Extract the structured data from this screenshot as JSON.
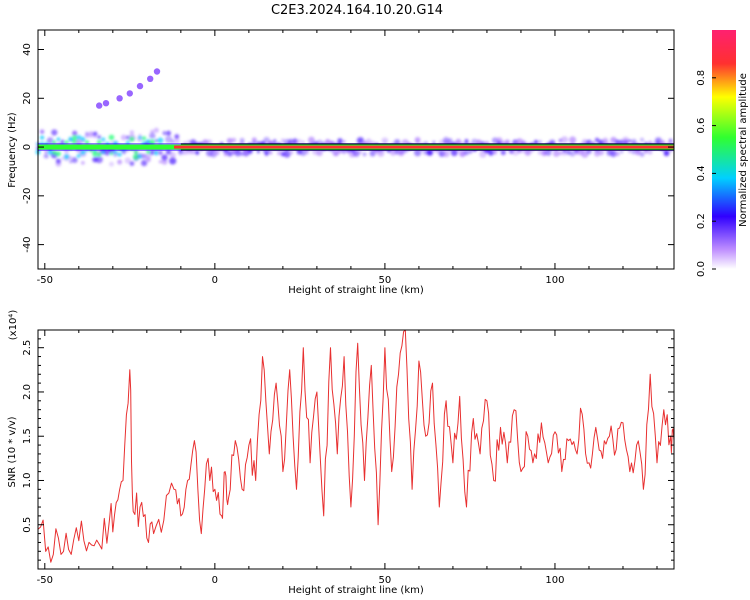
{
  "title": "C2E3.2024.164.10.20.G14",
  "chart_data": [
    {
      "type": "heatmap",
      "xlabel": "Height of straight line (km)",
      "ylabel": "Frequency (Hz)",
      "xlim": [
        -52,
        135
      ],
      "ylim": [
        -50,
        48
      ],
      "x_ticks": [
        -50,
        0,
        50,
        100
      ],
      "y_ticks": [
        -40,
        -20,
        0,
        20,
        40
      ],
      "colorbar": {
        "label": "Normalized spectral amplitude",
        "range": [
          0.0,
          1.0
        ],
        "ticks": [
          0.0,
          0.2,
          0.4,
          0.6,
          0.8
        ],
        "colormap": [
          "#ffffff",
          "#c090ff",
          "#3000ff",
          "#00d0ff",
          "#30ff30",
          "#ffff00",
          "#ff3030",
          "#ff2070"
        ]
      },
      "main_ridge": {
        "frequency_hz": 0,
        "x_range": [
          -52,
          135
        ]
      },
      "scatter_branch": [
        {
          "x": -34,
          "f": 17
        },
        {
          "x": -32,
          "f": 18
        },
        {
          "x": -28,
          "f": 20
        },
        {
          "x": -25,
          "f": 22
        },
        {
          "x": -22,
          "f": 25
        },
        {
          "x": -19,
          "f": 28
        },
        {
          "x": -17,
          "f": 31
        }
      ]
    },
    {
      "type": "line",
      "xlabel": "Height of straight line (km)",
      "ylabel": "SNR (10 * v/v)",
      "y_multiplier": "(x10⁴)",
      "xlim": [
        -52,
        135
      ],
      "ylim": [
        0,
        2.7
      ],
      "x_ticks": [
        -50,
        0,
        50,
        100
      ],
      "y_ticks": [
        0.5,
        1.0,
        1.5,
        2.0,
        2.5
      ],
      "series": [
        {
          "color": "#e83030",
          "points": [
            [
              -52,
              0.45
            ],
            [
              -49,
              0.25
            ],
            [
              -46,
              0.35
            ],
            [
              -43,
              0.22
            ],
            [
              -40,
              0.32
            ],
            [
              -37,
              0.3
            ],
            [
              -34,
              0.28
            ],
            [
              -31,
              0.55
            ],
            [
              -29,
              0.75
            ],
            [
              -27,
              1.0
            ],
            [
              -25,
              2.25
            ],
            [
              -24,
              0.65
            ],
            [
              -22,
              0.7
            ],
            [
              -20,
              0.35
            ],
            [
              -18,
              0.4
            ],
            [
              -15,
              0.55
            ],
            [
              -12,
              0.9
            ],
            [
              -10,
              0.6
            ],
            [
              -8,
              1.0
            ],
            [
              -6,
              1.45
            ],
            [
              -4,
              0.4
            ],
            [
              -2,
              1.25
            ],
            [
              0,
              0.9
            ],
            [
              2,
              0.6
            ],
            [
              3,
              1.1
            ],
            [
              4,
              0.8
            ],
            [
              6,
              1.45
            ],
            [
              8,
              0.9
            ],
            [
              10,
              1.4
            ],
            [
              12,
              1.0
            ],
            [
              14,
              2.4
            ],
            [
              16,
              1.3
            ],
            [
              18,
              2.1
            ],
            [
              20,
              1.1
            ],
            [
              22,
              2.25
            ],
            [
              24,
              0.9
            ],
            [
              26,
              2.5
            ],
            [
              28,
              1.2
            ],
            [
              30,
              2.0
            ],
            [
              32,
              0.6
            ],
            [
              34,
              2.5
            ],
            [
              36,
              1.3
            ],
            [
              38,
              2.4
            ],
            [
              40,
              0.7
            ],
            [
              42,
              2.55
            ],
            [
              44,
              1.0
            ],
            [
              46,
              2.3
            ],
            [
              48,
              0.5
            ],
            [
              50,
              2.5
            ],
            [
              52,
              1.1
            ],
            [
              54,
              2.2
            ],
            [
              56,
              2.7
            ],
            [
              58,
              0.9
            ],
            [
              60,
              2.35
            ],
            [
              62,
              1.5
            ],
            [
              64,
              2.1
            ],
            [
              66,
              0.7
            ],
            [
              68,
              1.9
            ],
            [
              70,
              1.2
            ],
            [
              72,
              1.95
            ],
            [
              74,
              0.7
            ],
            [
              76,
              1.7
            ],
            [
              78,
              1.3
            ],
            [
              80,
              1.9
            ],
            [
              82,
              1.0
            ],
            [
              84,
              1.6
            ],
            [
              86,
              1.2
            ],
            [
              88,
              1.8
            ],
            [
              90,
              1.1
            ],
            [
              92,
              1.5
            ],
            [
              94,
              1.3
            ],
            [
              96,
              1.65
            ],
            [
              98,
              1.2
            ],
            [
              100,
              1.55
            ],
            [
              102,
              1.1
            ],
            [
              104,
              1.45
            ],
            [
              106,
              1.35
            ],
            [
              108,
              1.75
            ],
            [
              110,
              1.2
            ],
            [
              112,
              1.6
            ],
            [
              114,
              1.25
            ],
            [
              116,
              1.5
            ],
            [
              118,
              1.35
            ],
            [
              120,
              1.65
            ],
            [
              122,
              1.1
            ],
            [
              124,
              1.4
            ],
            [
              126,
              0.9
            ],
            [
              128,
              2.2
            ],
            [
              130,
              1.2
            ],
            [
              132,
              1.8
            ],
            [
              134,
              1.5
            ],
            [
              135,
              1.45
            ]
          ]
        }
      ]
    }
  ]
}
